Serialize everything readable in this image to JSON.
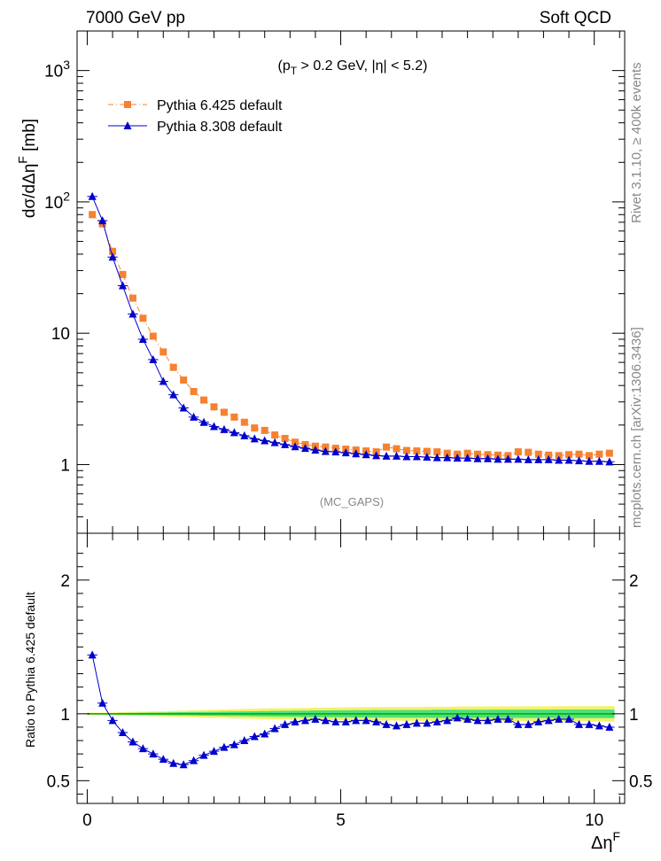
{
  "header": {
    "left": "7000 GeV pp",
    "right": "Soft QCD",
    "cuts": "(p_T > 0.2 GeV, |η| < 5.2)",
    "analysis": "(MC_GAPS)"
  },
  "side_labels": {
    "rivet": "Rivet 3.1.10, ≥ 400k events",
    "mcplots": "mcplots.cern.ch [arXiv:1306.3436]"
  },
  "colors": {
    "pythia6": "#f58231",
    "pythia8": "#0000cc",
    "band_inner": "#4ce07a",
    "band_outer": "#f2f26b",
    "reference_line": "#00aa00"
  },
  "chart_data": [
    {
      "type": "line",
      "panel": "main",
      "ylabel": "dσ/dΔη^F [mb]",
      "yscale": "log",
      "ylim": [
        0.3,
        2000
      ],
      "xlim": [
        -0.2,
        10.6
      ],
      "yticks": [
        {
          "value": 1,
          "label": "1"
        },
        {
          "value": 10,
          "label": "10"
        },
        {
          "value": 100,
          "label": "10^2"
        },
        {
          "value": 1000,
          "label": "10^3"
        }
      ],
      "x": [
        0.1,
        0.3,
        0.5,
        0.7,
        0.9,
        1.1,
        1.3,
        1.5,
        1.7,
        1.9,
        2.1,
        2.3,
        2.5,
        2.7,
        2.9,
        3.1,
        3.3,
        3.5,
        3.7,
        3.9,
        4.1,
        4.3,
        4.5,
        4.7,
        4.9,
        5.1,
        5.3,
        5.5,
        5.7,
        5.9,
        6.1,
        6.3,
        6.5,
        6.7,
        6.9,
        7.1,
        7.3,
        7.5,
        7.7,
        7.9,
        8.1,
        8.3,
        8.5,
        8.7,
        8.9,
        9.1,
        9.3,
        9.5,
        9.7,
        9.9,
        10.1,
        10.3
      ],
      "series": [
        {
          "name": "Pythia 6.425 default",
          "style": "dash-dot, square markers",
          "values": [
            80,
            68,
            42,
            28,
            18.5,
            13,
            9.5,
            7.2,
            5.5,
            4.4,
            3.6,
            3.1,
            2.75,
            2.5,
            2.3,
            2.1,
            1.9,
            1.82,
            1.68,
            1.58,
            1.48,
            1.42,
            1.38,
            1.36,
            1.33,
            1.31,
            1.29,
            1.27,
            1.25,
            1.36,
            1.32,
            1.28,
            1.27,
            1.26,
            1.25,
            1.22,
            1.2,
            1.22,
            1.2,
            1.19,
            1.18,
            1.17,
            1.25,
            1.24,
            1.2,
            1.18,
            1.17,
            1.19,
            1.2,
            1.17,
            1.2,
            1.22
          ]
        },
        {
          "name": "Pythia 8.308 default",
          "style": "solid, triangle markers",
          "values": [
            110,
            72,
            38,
            23,
            14,
            9,
            6.3,
            4.3,
            3.4,
            2.7,
            2.3,
            2.1,
            1.95,
            1.85,
            1.75,
            1.66,
            1.57,
            1.52,
            1.47,
            1.42,
            1.37,
            1.33,
            1.29,
            1.26,
            1.25,
            1.23,
            1.21,
            1.19,
            1.17,
            1.16,
            1.16,
            1.15,
            1.15,
            1.14,
            1.13,
            1.13,
            1.12,
            1.12,
            1.11,
            1.11,
            1.1,
            1.1,
            1.1,
            1.09,
            1.09,
            1.09,
            1.08,
            1.08,
            1.07,
            1.06,
            1.06,
            1.05
          ]
        }
      ]
    },
    {
      "type": "line",
      "panel": "ratio",
      "xlabel": "Δη^F",
      "ylabel": "Ratio to Pythia 6.425 default",
      "ylim": [
        0.33,
        2.35
      ],
      "xlim": [
        -0.2,
        10.6
      ],
      "yticks": [
        {
          "value": 0.5,
          "label": "0.5"
        },
        {
          "value": 1,
          "label": "1"
        },
        {
          "value": 2,
          "label": "2"
        }
      ],
      "xticks": [
        {
          "value": 0,
          "label": "0"
        },
        {
          "value": 5,
          "label": "5"
        },
        {
          "value": 10,
          "label": "10"
        }
      ],
      "reference": 1,
      "band_inner_halfwidth": [
        0.004,
        0.004,
        0.005,
        0.006,
        0.007,
        0.008,
        0.009,
        0.01,
        0.011,
        0.012,
        0.013,
        0.014,
        0.015,
        0.016,
        0.017,
        0.018,
        0.019,
        0.02,
        0.021,
        0.022,
        0.023,
        0.024,
        0.025,
        0.025,
        0.026,
        0.026,
        0.027,
        0.027,
        0.028,
        0.028,
        0.028,
        0.029,
        0.029,
        0.029,
        0.03,
        0.03,
        0.03,
        0.03,
        0.03,
        0.03,
        0.031,
        0.031,
        0.031,
        0.031,
        0.031,
        0.031,
        0.032,
        0.032,
        0.032,
        0.032,
        0.032,
        0.032
      ],
      "band_outer_halfwidth": [
        0.008,
        0.008,
        0.01,
        0.012,
        0.014,
        0.016,
        0.018,
        0.02,
        0.022,
        0.024,
        0.026,
        0.028,
        0.03,
        0.032,
        0.034,
        0.036,
        0.038,
        0.04,
        0.041,
        0.042,
        0.043,
        0.044,
        0.045,
        0.046,
        0.047,
        0.048,
        0.049,
        0.05,
        0.05,
        0.051,
        0.051,
        0.052,
        0.052,
        0.053,
        0.053,
        0.053,
        0.054,
        0.054,
        0.054,
        0.055,
        0.055,
        0.055,
        0.055,
        0.056,
        0.056,
        0.056,
        0.056,
        0.057,
        0.057,
        0.057,
        0.057,
        0.058
      ],
      "series": [
        {
          "name": "Pythia 8.308 default",
          "values": [
            1.44,
            1.08,
            0.95,
            0.86,
            0.79,
            0.74,
            0.7,
            0.66,
            0.63,
            0.62,
            0.65,
            0.69,
            0.72,
            0.75,
            0.77,
            0.8,
            0.83,
            0.85,
            0.89,
            0.92,
            0.94,
            0.95,
            0.96,
            0.95,
            0.94,
            0.94,
            0.95,
            0.95,
            0.94,
            0.92,
            0.91,
            0.92,
            0.93,
            0.93,
            0.94,
            0.95,
            0.97,
            0.96,
            0.95,
            0.95,
            0.96,
            0.96,
            0.92,
            0.92,
            0.94,
            0.95,
            0.96,
            0.96,
            0.92,
            0.92,
            0.91,
            0.9
          ]
        }
      ]
    }
  ]
}
